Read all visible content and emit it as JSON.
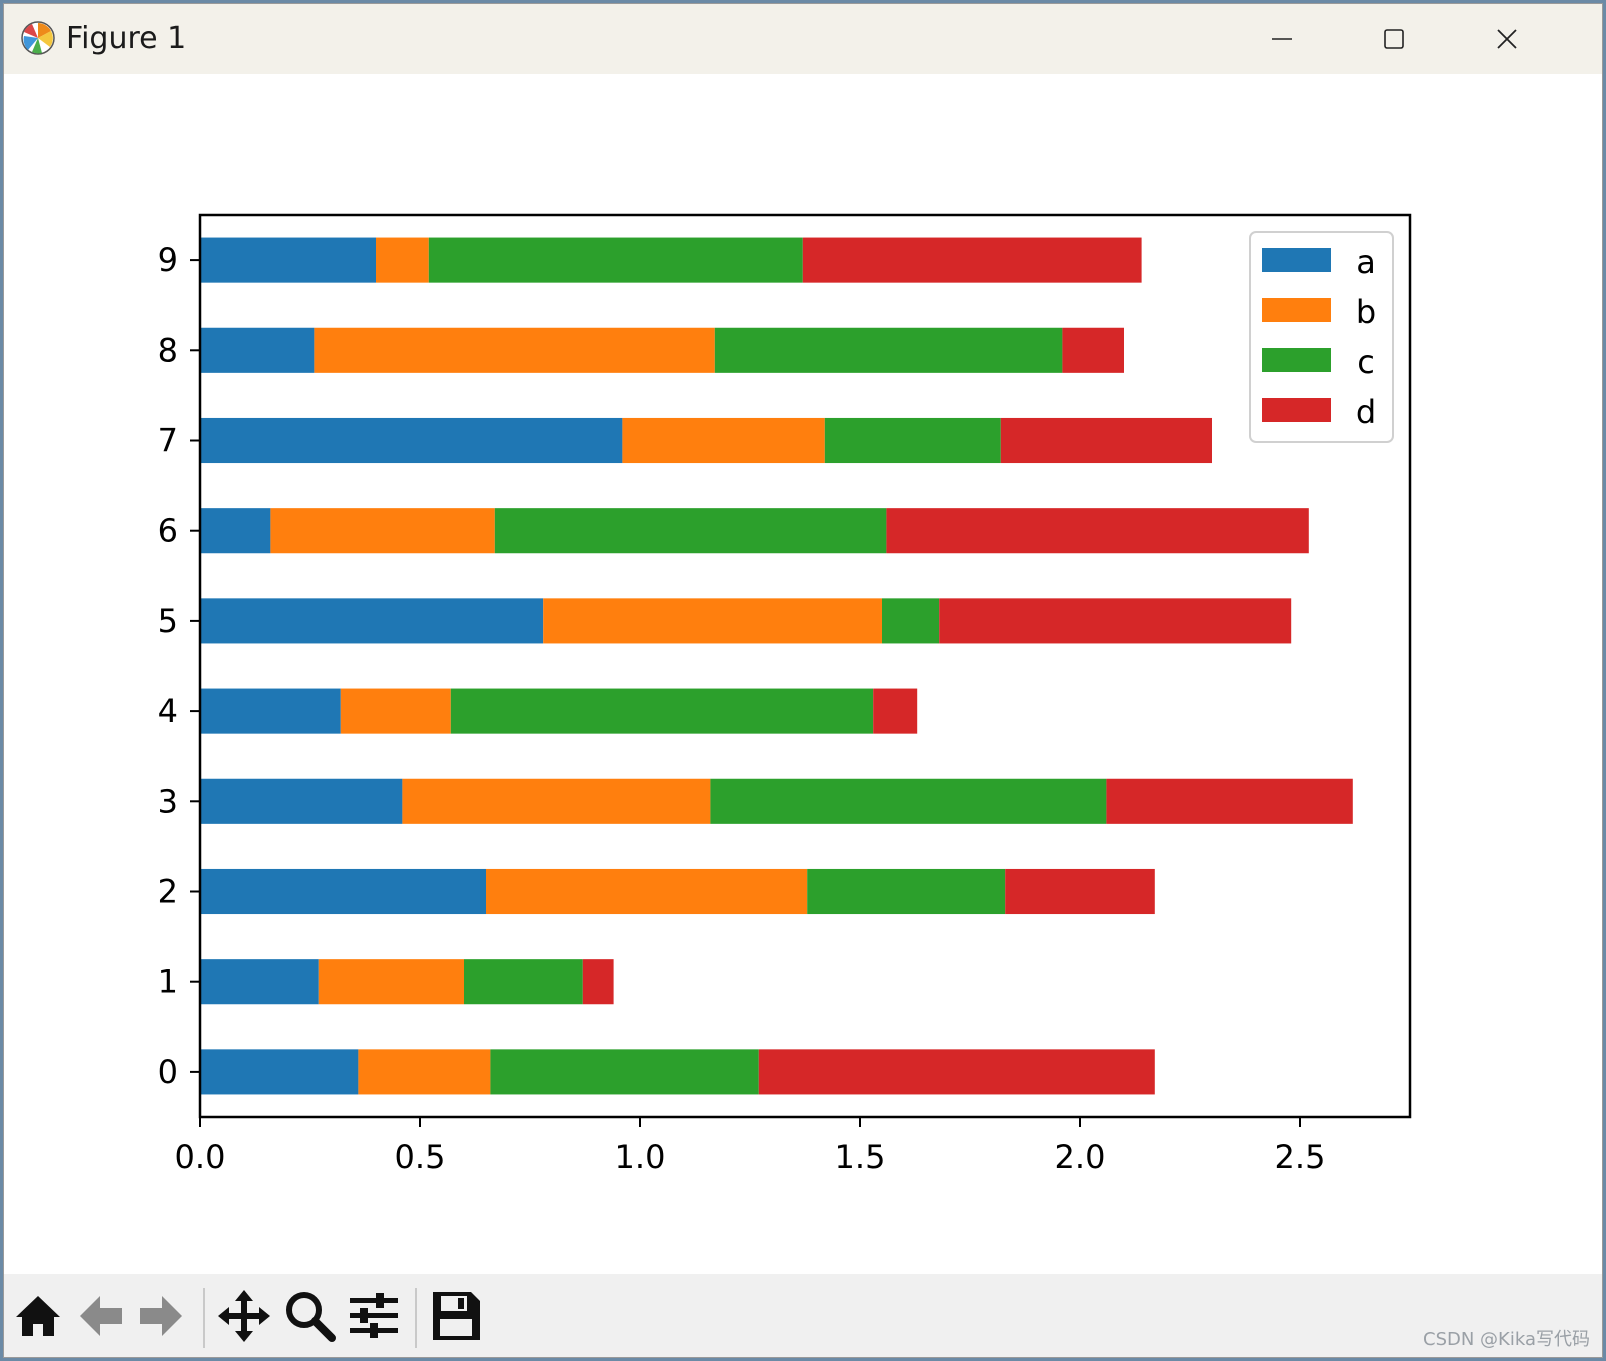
{
  "window": {
    "title": "Figure 1",
    "buttons": {
      "minimize": "minimize-icon",
      "maximize": "maximize-icon",
      "close": "close-icon"
    }
  },
  "toolbar": {
    "icons": [
      "home-icon",
      "back-arrow-icon",
      "forward-arrow-icon",
      "pan-move-icon",
      "zoom-magnifier-icon",
      "configure-subplots-icon",
      "save-floppy-icon"
    ]
  },
  "watermark": "CSDN @Kika写代码",
  "chart_data": {
    "type": "bar",
    "orientation": "horizontal",
    "stacked": true,
    "categories": [
      "0",
      "1",
      "2",
      "3",
      "4",
      "5",
      "6",
      "7",
      "8",
      "9"
    ],
    "series": [
      {
        "name": "a",
        "color": "#1f77b4",
        "values": [
          0.36,
          0.27,
          0.65,
          0.46,
          0.32,
          0.78,
          0.16,
          0.96,
          0.26,
          0.4
        ]
      },
      {
        "name": "b",
        "color": "#ff7f0e",
        "values": [
          0.3,
          0.33,
          0.73,
          0.7,
          0.25,
          0.77,
          0.51,
          0.46,
          0.91,
          0.12
        ]
      },
      {
        "name": "c",
        "color": "#2ca02c",
        "values": [
          0.61,
          0.27,
          0.45,
          0.9,
          0.96,
          0.13,
          0.89,
          0.4,
          0.79,
          0.85
        ]
      },
      {
        "name": "d",
        "color": "#d62728",
        "values": [
          0.9,
          0.07,
          0.34,
          0.56,
          0.1,
          0.8,
          0.96,
          0.48,
          0.14,
          0.77
        ]
      }
    ],
    "xticks": [
      "0.0",
      "0.5",
      "1.0",
      "1.5",
      "2.0",
      "2.5"
    ],
    "xlim": [
      0,
      2.75
    ],
    "legend_position": "top-right",
    "grid": false
  }
}
